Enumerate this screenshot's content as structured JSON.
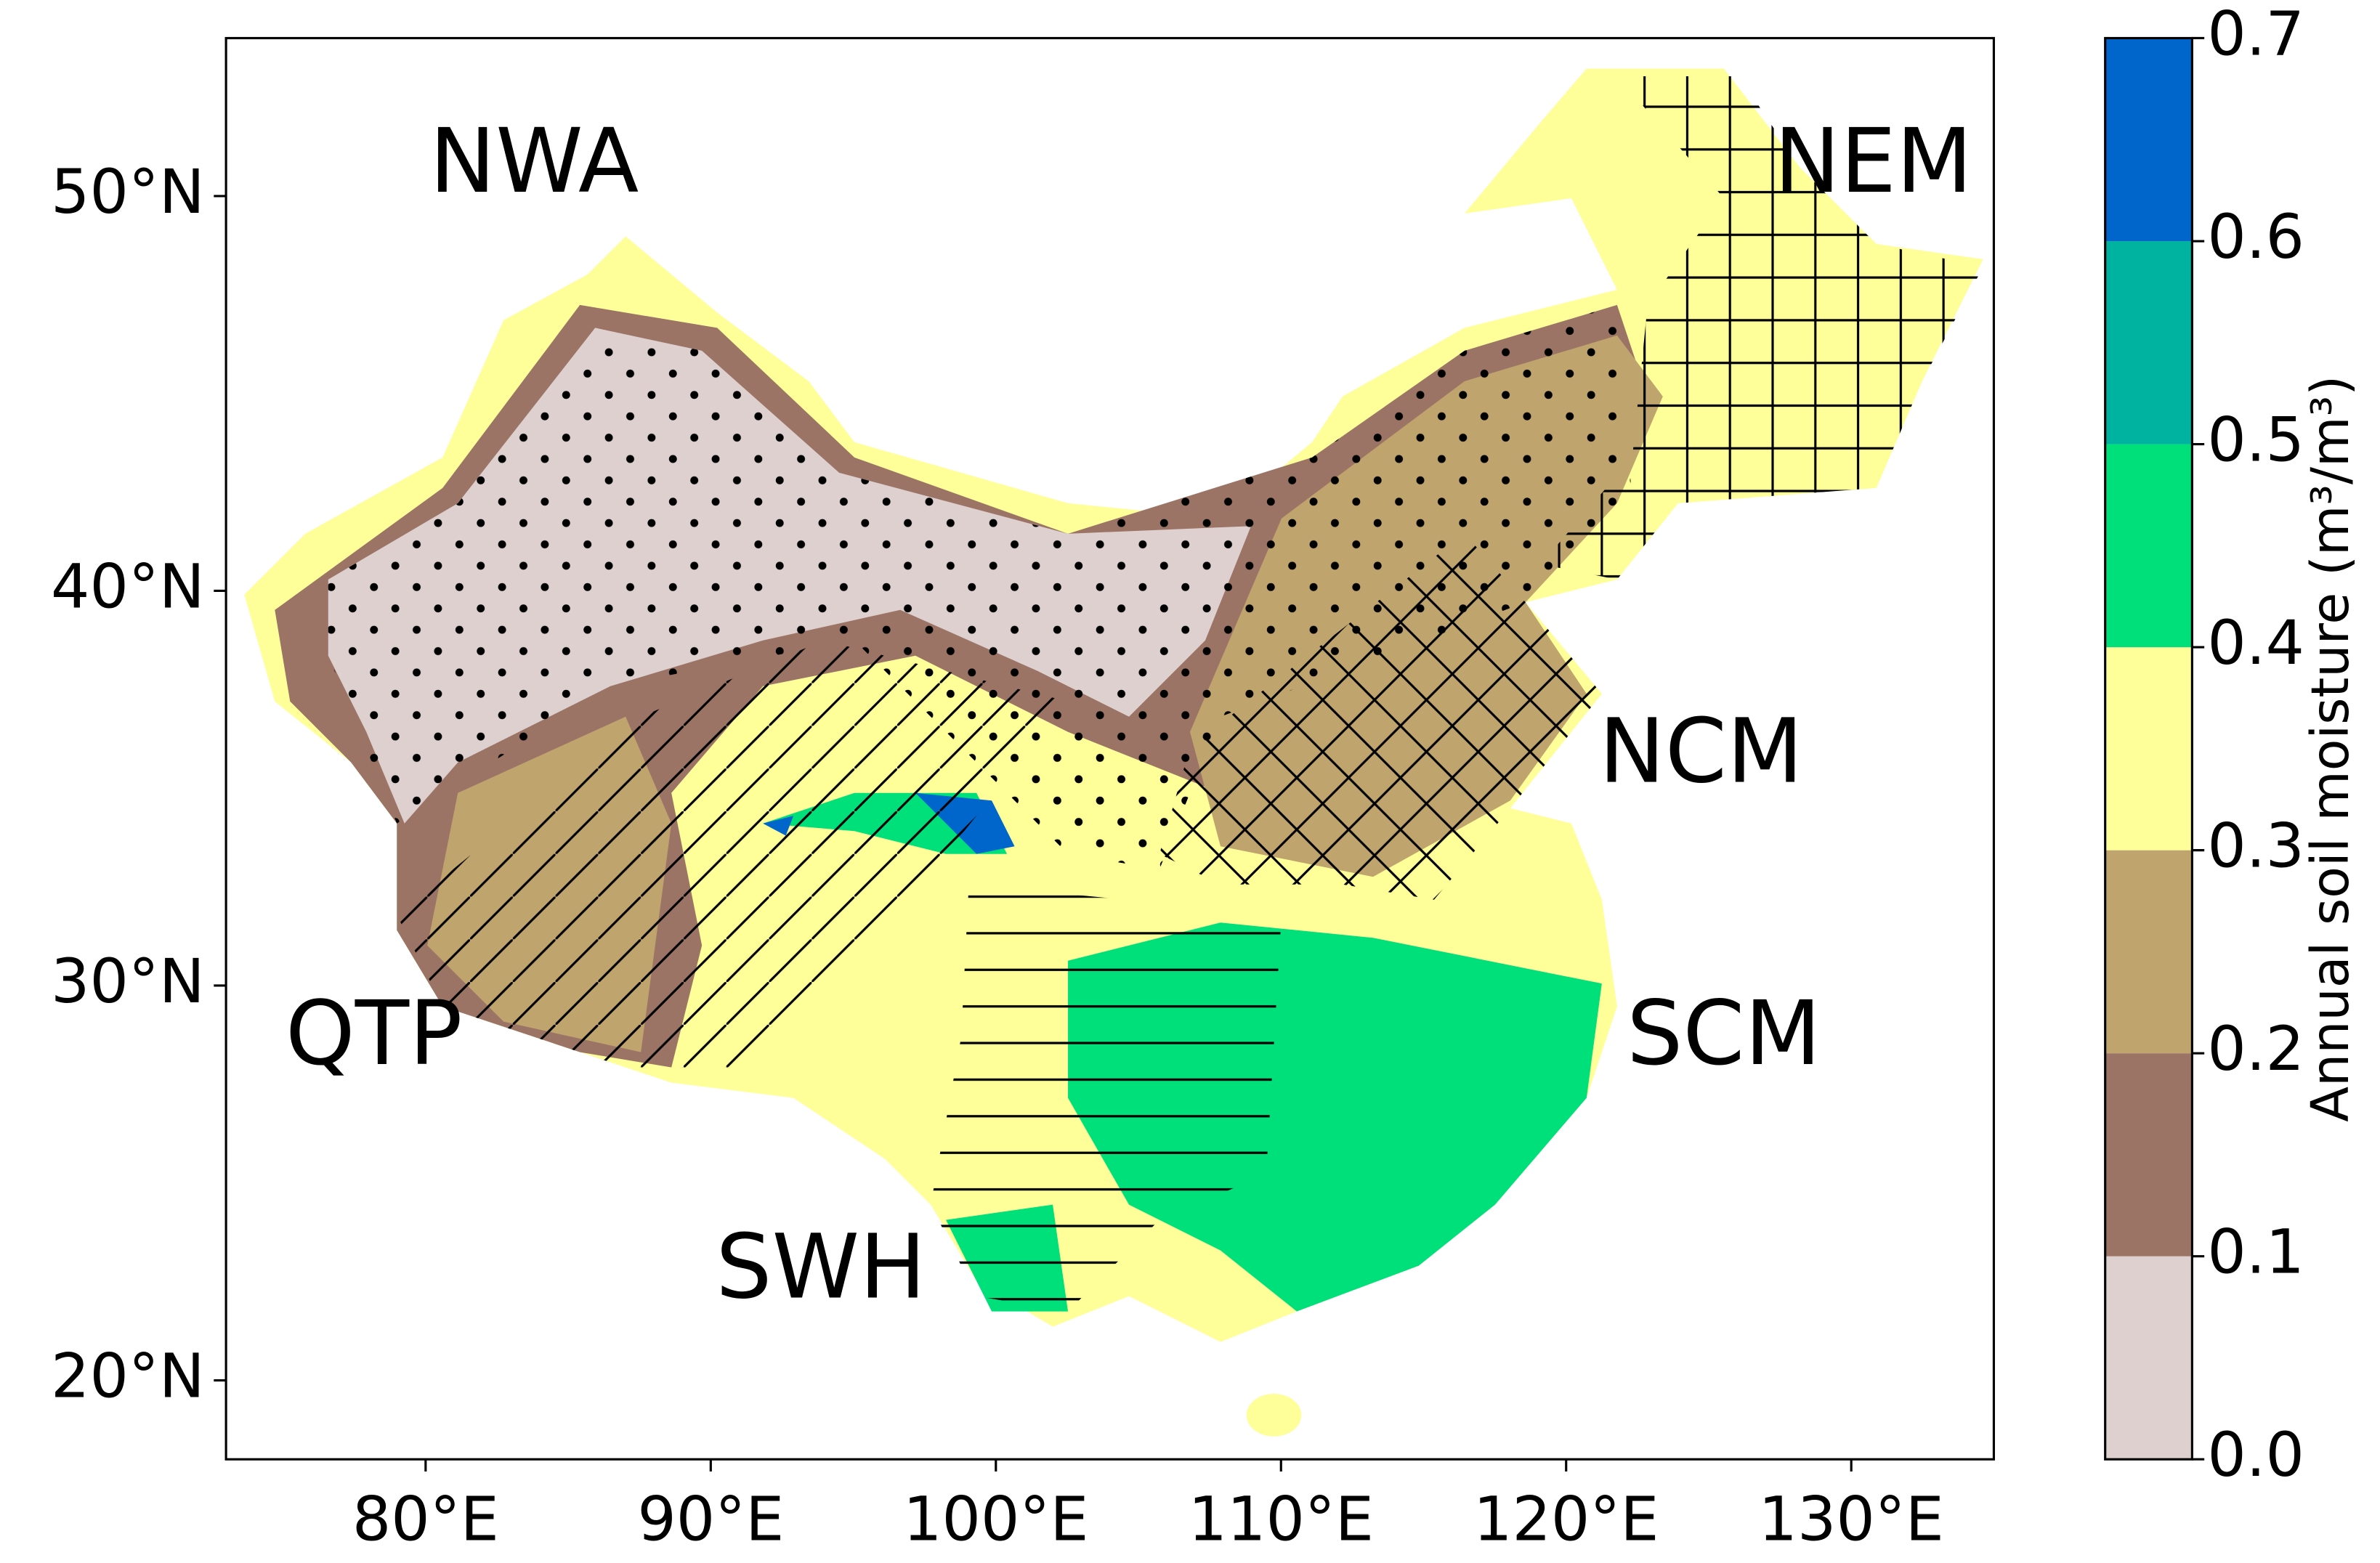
{
  "chart_data": {
    "type": "map",
    "regions": [
      "NWA",
      "NEM",
      "NCM",
      "QTP",
      "SCM",
      "SWH"
    ],
    "xlim": [
      73,
      135
    ],
    "ylim": [
      18,
      54
    ],
    "xticks": [
      {
        "value": 80,
        "label": "80°E"
      },
      {
        "value": 90,
        "label": "90°E"
      },
      {
        "value": 100,
        "label": "100°E"
      },
      {
        "value": 110,
        "label": "110°E"
      },
      {
        "value": 120,
        "label": "120°E"
      },
      {
        "value": 130,
        "label": "130°E"
      }
    ],
    "yticks": [
      {
        "value": 20,
        "label": "20°N"
      },
      {
        "value": 30,
        "label": "30°N"
      },
      {
        "value": 40,
        "label": "40°N"
      },
      {
        "value": 50,
        "label": "50°N"
      }
    ],
    "colorbar": {
      "label": "Annual soil moisture (m³/m³)",
      "ticks": [
        {
          "value": 0,
          "label": "0.0"
        },
        0.1,
        0.2,
        0.3,
        0.4,
        0.5,
        0.6,
        0.7
      ],
      "colors": [
        "#ddd0cf",
        "#9b7466",
        "#c0a46e",
        "#ffff99",
        "#00e07a",
        "#00b3a0",
        "#0066cc"
      ]
    }
  }
}
